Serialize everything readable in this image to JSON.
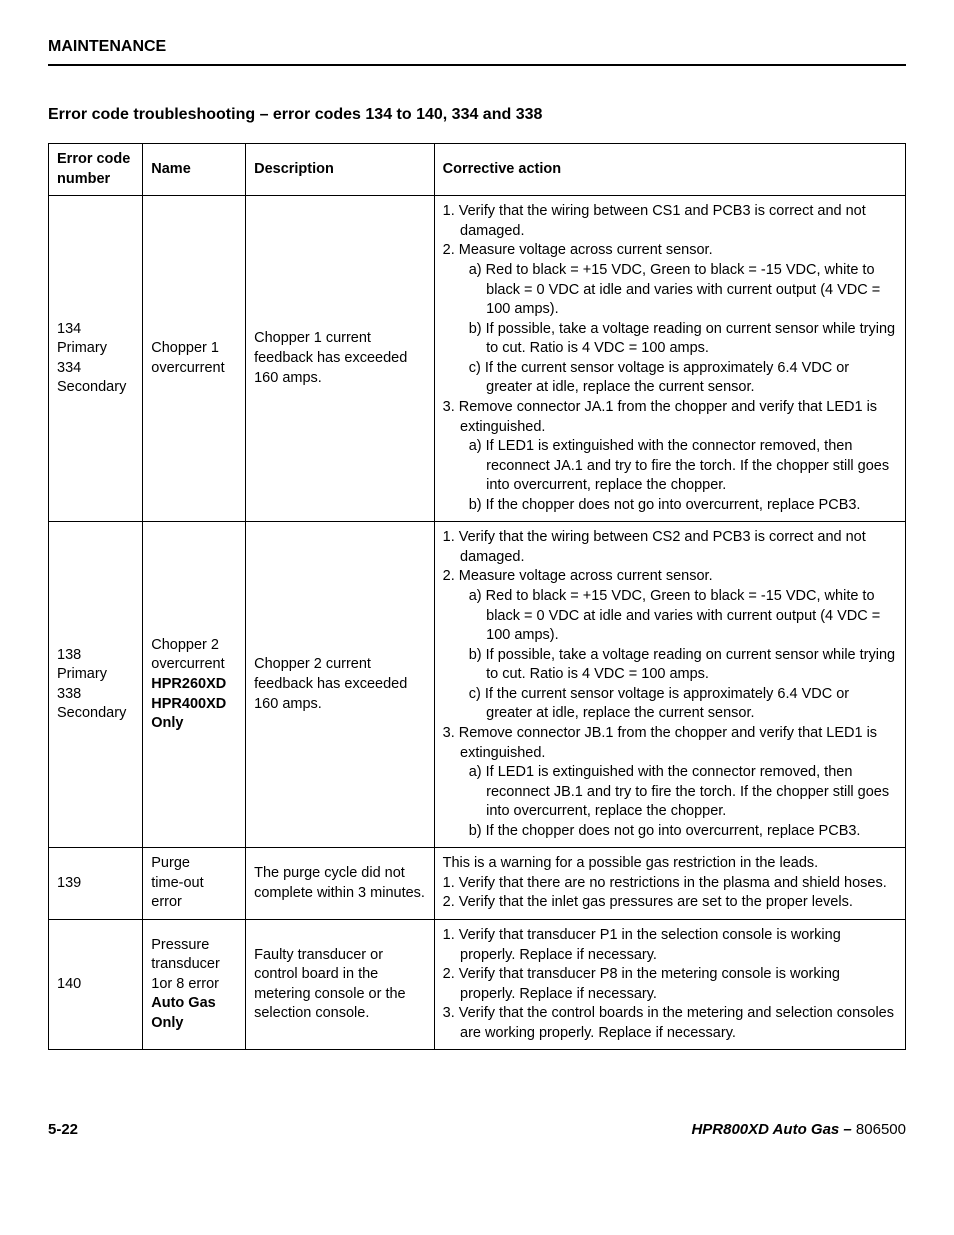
{
  "section_header": "MAINTENANCE",
  "page_title": "Error code troubleshooting  –  error codes 134 to 140, 334 and 338",
  "columns": {
    "c1": "Error code number",
    "c2": "Name",
    "c3": "Description",
    "c4": "Corrective action"
  },
  "rows": [
    {
      "code_lines": [
        "134",
        "Primary",
        "334",
        "Secondary"
      ],
      "name_lines": [
        "Chopper 1 overcurrent"
      ],
      "name_bold_lines": [],
      "description": "Chopper 1 current feedback has exceeded 160 amps.",
      "action": [
        {
          "cls": "num-item",
          "text": "1. Verify that the wiring between CS1 and PCB3 is correct and not damaged."
        },
        {
          "cls": "num-item",
          "text": "2. Measure voltage across current sensor."
        },
        {
          "cls": "sub-item",
          "text": "a) Red to black = +15 VDC, Green to black = -15 VDC, white to black = 0 VDC at idle and varies with current output (4 VDC = 100 amps)."
        },
        {
          "cls": "sub-item",
          "text": "b) If possible, take a voltage reading on current sensor while trying to cut. Ratio is 4 VDC = 100 amps."
        },
        {
          "cls": "sub-item",
          "text": "c) If the current sensor voltage is approximately 6.4 VDC or greater at idle, replace the current sensor."
        },
        {
          "cls": "num-item",
          "text": "3. Remove connector JA.1 from the chopper and verify that LED1 is extinguished."
        },
        {
          "cls": "sub-item",
          "text": "a) If LED1 is extinguished with the connector removed, then reconnect JA.1 and try to fire the torch. If the chopper still goes into overcurrent, replace the chopper."
        },
        {
          "cls": "sub-item",
          "text": "b) If the chopper does not go into overcurrent, replace PCB3."
        }
      ]
    },
    {
      "code_lines": [
        "138",
        "Primary",
        "338",
        "Secondary"
      ],
      "name_lines": [
        "Chopper 2 overcurrent"
      ],
      "name_bold_lines": [
        "HPR260XD",
        "HPR400XD",
        "Only"
      ],
      "description": "Chopper 2 current feedback has exceeded 160 amps.",
      "action": [
        {
          "cls": "num-item",
          "text": "1. Verify that the wiring between CS2 and PCB3 is correct and not damaged."
        },
        {
          "cls": "num-item",
          "text": "2. Measure voltage across current sensor."
        },
        {
          "cls": "sub-item",
          "text": "a) Red to black = +15 VDC, Green to black = -15 VDC, white to black = 0 VDC at idle and varies with current output (4 VDC = 100 amps)."
        },
        {
          "cls": "sub-item",
          "text": "b) If possible, take a voltage reading on current sensor while trying to cut. Ratio is 4 VDC = 100 amps."
        },
        {
          "cls": "sub-item",
          "text": "c) If the current sensor voltage is approximately 6.4 VDC or greater at idle, replace the current sensor."
        },
        {
          "cls": "num-item",
          "text": "3. Remove connector JB.1 from the chopper and verify that LED1 is extinguished."
        },
        {
          "cls": "sub-item",
          "text": "a) If LED1 is extinguished with the connector removed, then reconnect JB.1 and try to fire the torch. If the chopper still goes into overcurrent, replace the chopper."
        },
        {
          "cls": "sub-item",
          "text": "b) If the chopper does not go into overcurrent, replace PCB3."
        }
      ]
    },
    {
      "code_lines": [
        "139"
      ],
      "name_lines": [
        "Purge",
        "time-out error"
      ],
      "name_bold_lines": [],
      "description": "The purge cycle did not complete within 3 minutes.",
      "action": [
        {
          "cls": "",
          "text": "This is a warning for a possible gas restriction in the leads."
        },
        {
          "cls": "num-item",
          "text": "1. Verify that there are no restrictions in the plasma and shield hoses."
        },
        {
          "cls": "num-item",
          "text": "2. Verify that the inlet gas pressures are set to the proper levels."
        }
      ]
    },
    {
      "code_lines": [
        "140"
      ],
      "name_lines": [
        "Pressure transducer 1or 8 error"
      ],
      "name_bold_lines": [
        "Auto Gas",
        "Only"
      ],
      "description": "Faulty transducer or control board in the metering console or the selection console.",
      "action": [
        {
          "cls": "num-item",
          "text": "1. Verify that transducer P1 in the selection console is working properly. Replace if necessary."
        },
        {
          "cls": "num-item",
          "text": "2. Verify that transducer P8 in the metering console is working properly. Replace if necessary."
        },
        {
          "cls": "num-item",
          "text": "3. Verify that the control boards in the metering and selection consoles are working properly. Replace if necessary."
        }
      ]
    }
  ],
  "footer": {
    "page_num": "5-22",
    "doc_title": "HPR800XD Auto Gas  –",
    "doc_num": "  806500"
  }
}
